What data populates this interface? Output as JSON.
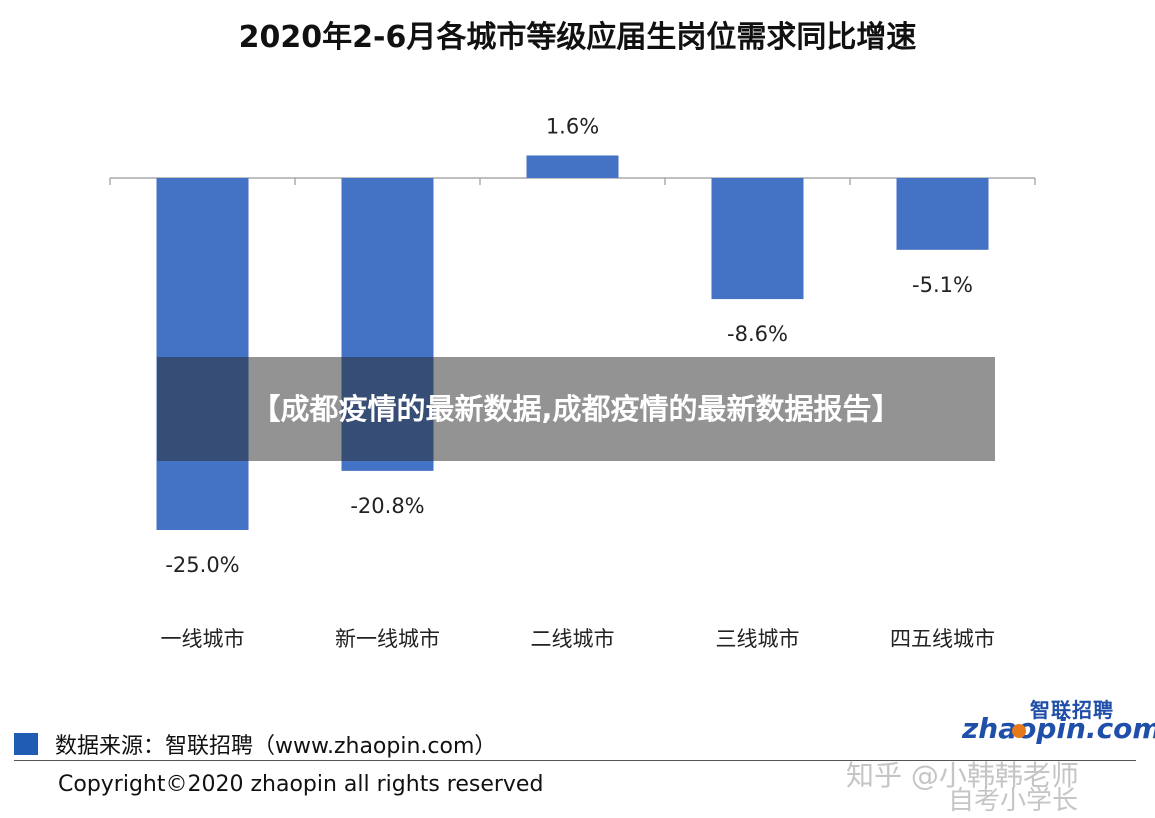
{
  "chart_data": {
    "type": "bar",
    "title": "2020年2-6月各城市等级应届生岗位需求同比增速",
    "categories": [
      "一线城市",
      "新一线城市",
      "二线城市",
      "三线城市",
      "四五线城市"
    ],
    "values": [
      -25.0,
      -20.8,
      1.6,
      -8.6,
      -5.1
    ],
    "value_labels": [
      "-25.0%",
      "-20.8%",
      "1.6%",
      "-8.6%",
      "-5.1%"
    ],
    "unit": "%",
    "bar_color": "#4472c4",
    "ylim": [
      -25.0,
      1.6
    ],
    "grid": false,
    "legend": "none"
  },
  "overlay": {
    "text": "【成都疫情的最新数据,成都疫情的最新数据报告】"
  },
  "footer": {
    "source": "数据来源：智联招聘（www.zhaopin.com）",
    "copyright": "Copyright©2020 zhaopin all rights reserved",
    "source_marker_color": "#1f5db4"
  },
  "logo": {
    "name_cn": "智联招聘",
    "name_en": "zhaopin.com"
  },
  "watermarks": {
    "line1": "知乎 @小韩韩老师",
    "line2": "自考小学长"
  }
}
